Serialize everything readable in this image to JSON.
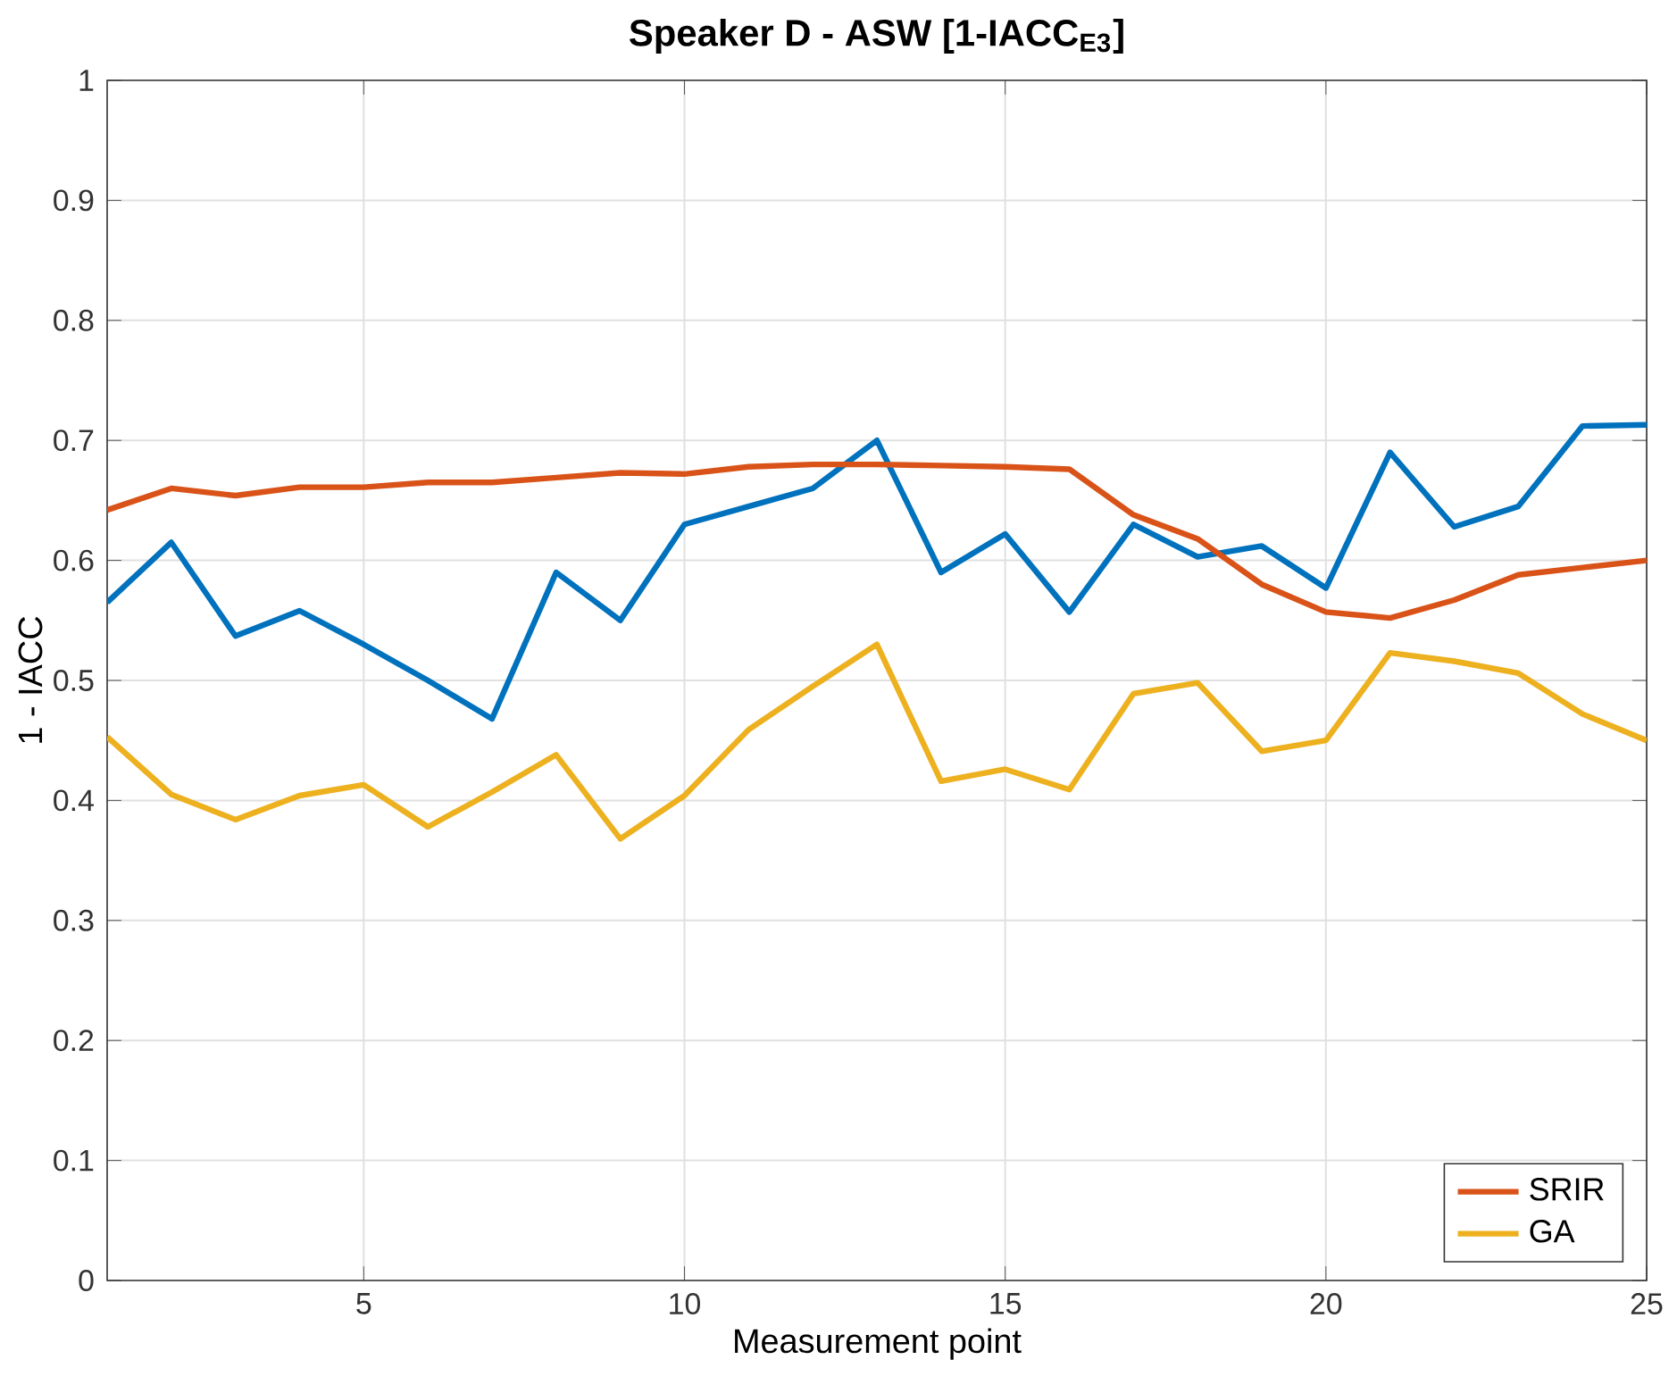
{
  "chart_data": {
    "type": "line",
    "title": "Speaker D - ASW [1-IACC$_{E3}$]",
    "xlabel": "Measurement point",
    "ylabel": "1 - IACC",
    "x": [
      1,
      2,
      3,
      4,
      5,
      6,
      7,
      8,
      9,
      10,
      11,
      12,
      13,
      14,
      15,
      16,
      17,
      18,
      19,
      20,
      21,
      22,
      23,
      24,
      25
    ],
    "series": [
      {
        "color": "#0072bd",
        "values": [
          0.565,
          0.615,
          0.537,
          0.558,
          0.53,
          0.5,
          0.468,
          0.59,
          0.55,
          0.63,
          0.645,
          0.66,
          0.7,
          0.59,
          0.622,
          0.557,
          0.63,
          0.603,
          0.612,
          0.577,
          0.69,
          0.628,
          0.645,
          0.712,
          0.713
        ]
      },
      {
        "name": "SRIR",
        "color": "#d95319",
        "values": [
          0.642,
          0.66,
          0.654,
          0.661,
          0.661,
          0.665,
          0.665,
          0.669,
          0.673,
          0.672,
          0.678,
          0.68,
          0.68,
          0.679,
          0.678,
          0.676,
          0.638,
          0.618,
          0.58,
          0.557,
          0.552,
          0.567,
          0.588,
          0.594,
          0.6
        ]
      },
      {
        "name": "GA",
        "color": "#edb120",
        "values": [
          0.453,
          0.405,
          0.384,
          0.404,
          0.413,
          0.378,
          0.407,
          0.438,
          0.368,
          0.404,
          0.459,
          0.495,
          0.53,
          0.416,
          0.426,
          0.409,
          0.489,
          0.498,
          0.441,
          0.45,
          0.523,
          0.516,
          0.506,
          0.472,
          0.45
        ]
      }
    ],
    "xlim": [
      1,
      25
    ],
    "xticks": [
      5,
      10,
      15,
      20,
      25
    ],
    "ylim": [
      0,
      1
    ],
    "yticks": [
      0,
      0.1,
      0.2,
      0.3,
      0.4,
      0.5,
      0.6,
      0.7,
      0.8,
      0.9,
      1
    ],
    "grid": true,
    "legend": "bottom right",
    "marker": "none",
    "line_style": "solid"
  }
}
